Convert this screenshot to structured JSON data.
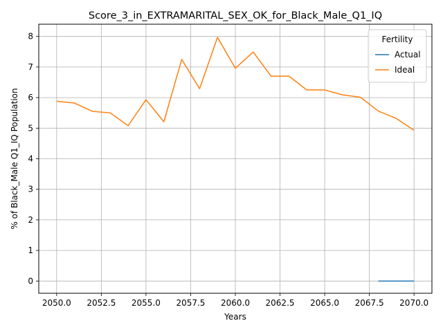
{
  "chart_data": {
    "type": "line",
    "title": "Score_3_in_EXTRAMARITAL_SEX_OK_for_Black_Male_Q1_IQ",
    "xlabel": "Years",
    "ylabel": "% of Black_Male Q1_IQ Population",
    "xlim": [
      2049,
      2071
    ],
    "ylim": [
      -0.4,
      8.4
    ],
    "x_ticks": [
      2050.0,
      2052.5,
      2055.0,
      2057.5,
      2060.0,
      2062.5,
      2065.0,
      2067.5,
      2070.0
    ],
    "x_tick_labels": [
      "2050.0",
      "2052.5",
      "2055.0",
      "2057.5",
      "2060.0",
      "2062.5",
      "2065.0",
      "2067.5",
      "2070.0"
    ],
    "y_ticks": [
      0,
      1,
      2,
      3,
      4,
      5,
      6,
      7,
      8
    ],
    "y_tick_labels": [
      "0",
      "1",
      "2",
      "3",
      "4",
      "5",
      "6",
      "7",
      "8"
    ],
    "grid": true,
    "legend": {
      "title": "Fertility",
      "placement": "top-right"
    },
    "series": [
      {
        "name": "Actual",
        "color": "#1f77b4",
        "x": [
          2068,
          2069,
          2070
        ],
        "values": [
          0.0,
          0.0,
          0.0
        ]
      },
      {
        "name": "Ideal",
        "color": "#ff7f0e",
        "x": [
          2050,
          2051,
          2052,
          2053,
          2054,
          2055,
          2056,
          2057,
          2058,
          2059,
          2060,
          2061,
          2062,
          2063,
          2064,
          2065,
          2066,
          2067,
          2068,
          2069,
          2070
        ],
        "values": [
          5.88,
          5.82,
          5.55,
          5.5,
          5.08,
          5.93,
          5.21,
          7.25,
          6.29,
          7.97,
          6.96,
          7.49,
          6.7,
          6.7,
          6.25,
          6.25,
          6.09,
          6.01,
          5.56,
          5.32,
          4.93
        ]
      }
    ]
  }
}
